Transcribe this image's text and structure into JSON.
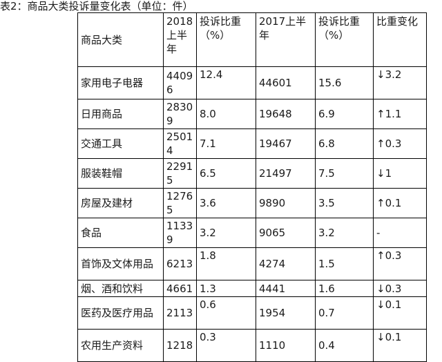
{
  "caption": "表2：商品大类投诉量变化表（单位：件）",
  "headers": [
    "商品大类",
    "2018上半年",
    "投诉比重（%）",
    "2017上半年",
    "投诉比重（%）",
    "比重变化"
  ],
  "rows": [
    [
      "家用电子电器",
      "44096",
      "12.4",
      "44601",
      "15.6",
      "↓3.2"
    ],
    [
      "日用商品",
      "28309",
      "8.0",
      "19648",
      "6.9",
      "↑1.1"
    ],
    [
      "交通工具",
      "25014",
      "7.1",
      "19467",
      "6.8",
      "↑0.3"
    ],
    [
      "服装鞋帽",
      "22915",
      "6.5",
      "21497",
      "7.5",
      "↓1"
    ],
    [
      "房屋及建材",
      "12765",
      "3.6",
      "9890",
      "3.5",
      "↑0.1"
    ],
    [
      "食品",
      "11339",
      "3.2",
      "9065",
      "3.2",
      "-"
    ],
    [
      "首饰及文体用品",
      "6213",
      "1.8",
      "4274",
      "1.5",
      "↑0.3"
    ],
    [
      "烟、酒和饮料",
      "4661",
      "1.3",
      "4441",
      "1.6",
      "↓0.3"
    ],
    [
      "医药及医疗用品",
      "2113",
      "0.6",
      "1954",
      "0.7",
      "↓0.1"
    ],
    [
      "农用生产资料",
      "1218",
      "0.3",
      "1110",
      "0.4",
      "↓0.1"
    ]
  ]
}
